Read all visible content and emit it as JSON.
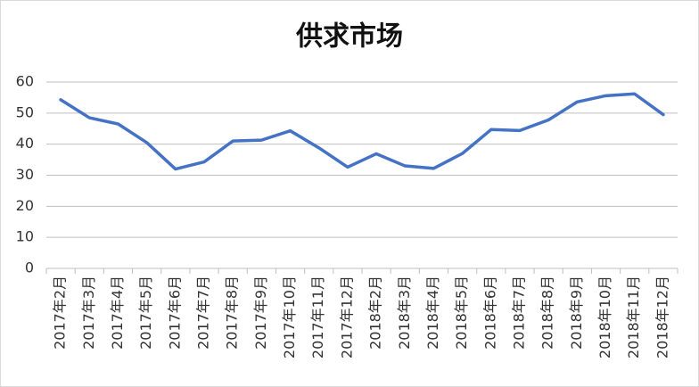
{
  "chart_data": {
    "type": "line",
    "title": "供求市场",
    "categories": [
      "2017年2月",
      "2017年3月",
      "2017年4月",
      "2017年5月",
      "2017年6月",
      "2017年7月",
      "2017年8月",
      "2017年9月",
      "2017年10月",
      "2017年11月",
      "2017年12月",
      "2018年2月",
      "2018年3月",
      "2018年4月",
      "2018年5月",
      "2018年6月",
      "2018年7月",
      "2018年8月",
      "2018年9月",
      "2018年10月",
      "2018年11月",
      "2018年12月"
    ],
    "values": [
      54.3,
      48.5,
      46.5,
      40.5,
      32,
      34.3,
      41,
      41.3,
      44.3,
      38.8,
      32.6,
      36.9,
      33,
      32.2,
      37,
      44.7,
      44.4,
      47.8,
      53.6,
      55.6,
      56.2,
      49.5
    ],
    "color": "#4472c4",
    "ylim": [
      0,
      60
    ],
    "yticks": [
      0,
      10,
      20,
      30,
      40,
      50,
      60
    ],
    "grid": true
  }
}
